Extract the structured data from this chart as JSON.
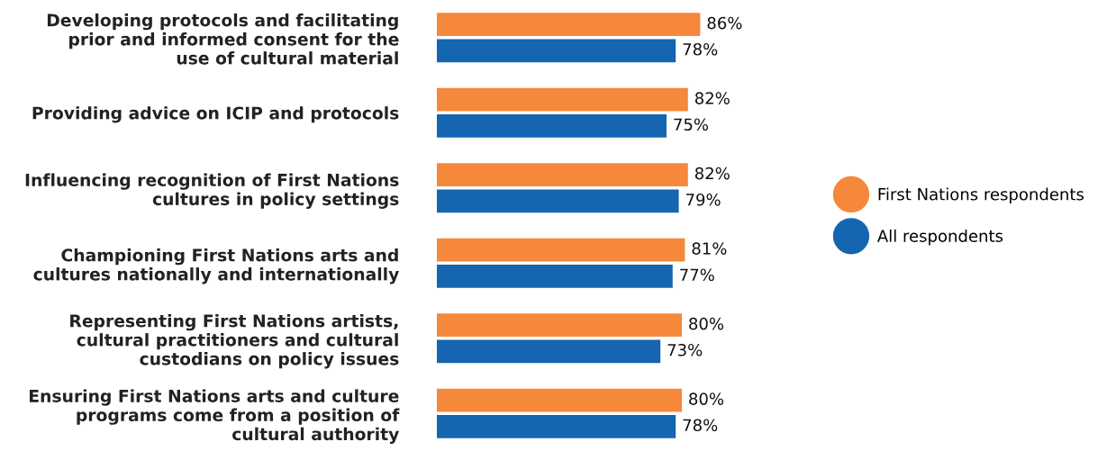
{
  "chart_data": {
    "type": "bar",
    "orientation": "horizontal",
    "categories": [
      "Developing protocols and facilitating\nprior and informed consent for the\nuse of cultural material",
      "Providing advice on ICIP and protocols",
      "Influencing recognition of First Nations\ncultures in policy settings",
      "Championing First Nations arts and\ncultures nationally and internationally",
      "Representing First Nations artists,\ncultural practitioners and cultural\ncustodians on policy issues",
      "Ensuring First Nations arts and culture\nprograms come from a position of\ncultural authority"
    ],
    "series": [
      {
        "name": "First Nations respondents",
        "color": "#f5883a",
        "values": [
          86,
          82,
          82,
          81,
          80,
          80
        ],
        "value_labels": [
          "86%",
          "82%",
          "82%",
          "81%",
          "80%",
          "80%"
        ]
      },
      {
        "name": "All respondents",
        "color": "#1565b0",
        "values": [
          78,
          75,
          79,
          77,
          73,
          78
        ],
        "value_labels": [
          "78%",
          "75%",
          "79%",
          "77%",
          "73%",
          "78%"
        ]
      }
    ],
    "tick_labels": false,
    "grid": false,
    "legend": "right",
    "marker": "circle"
  }
}
